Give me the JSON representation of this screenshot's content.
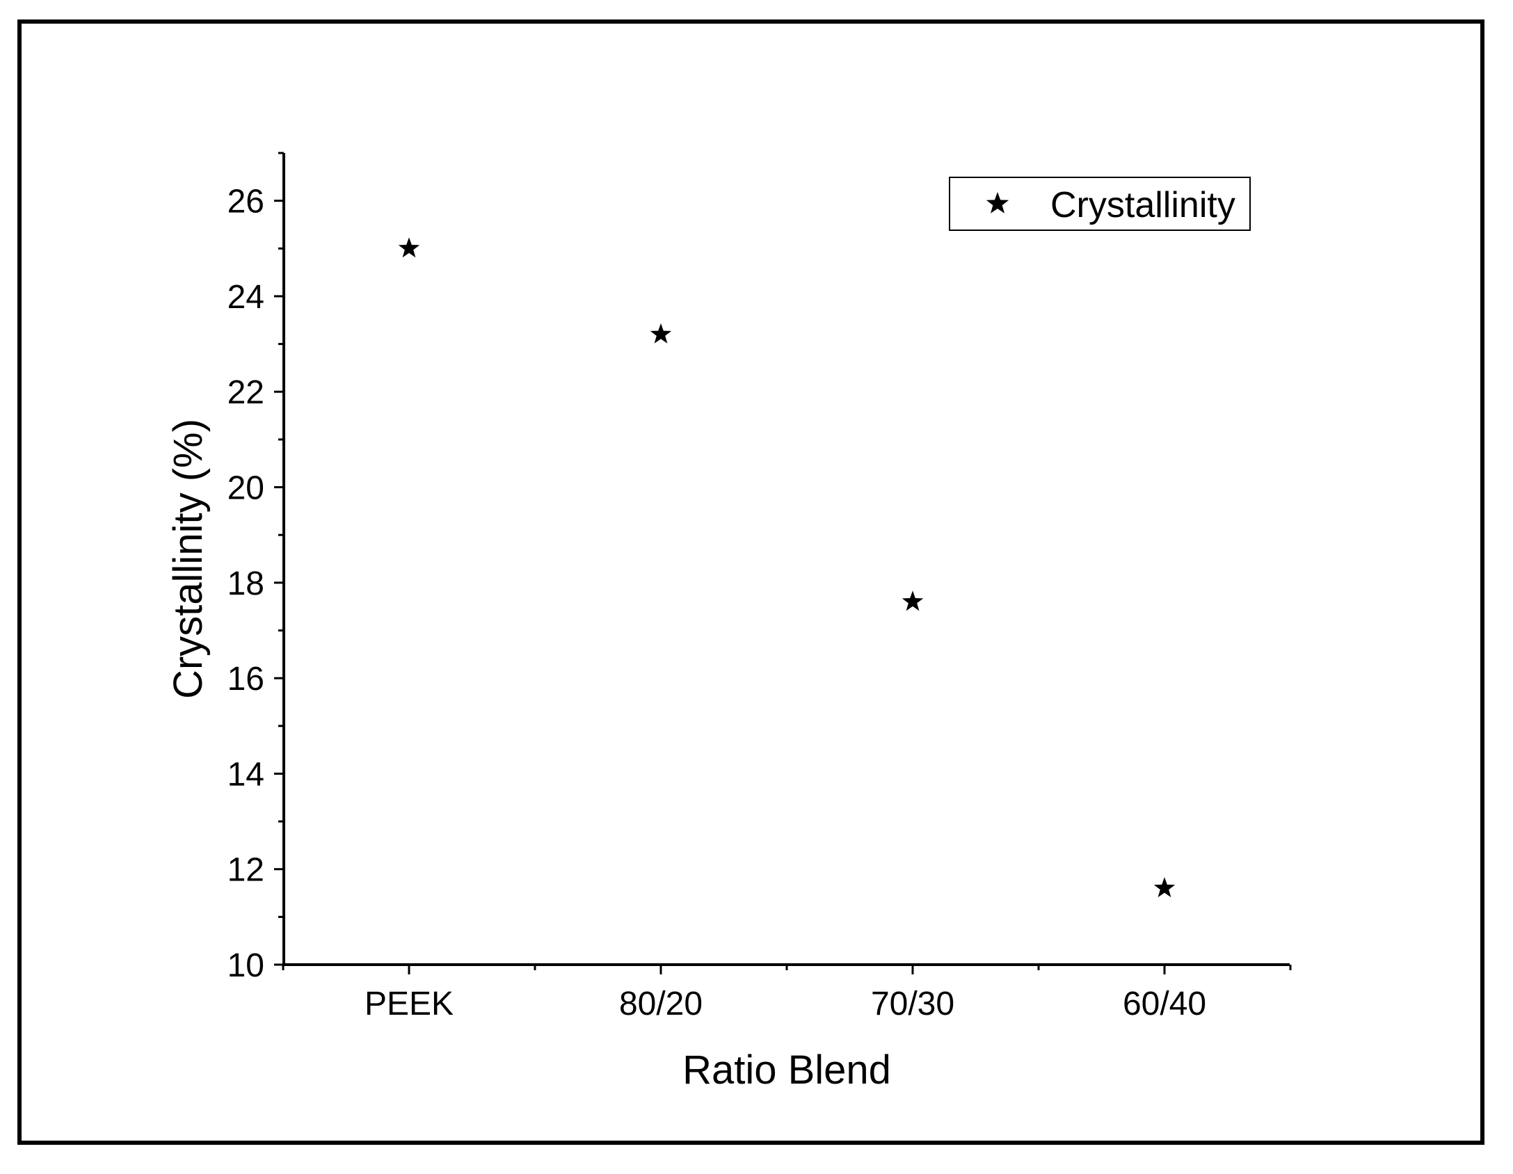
{
  "chart_data": {
    "type": "scatter",
    "categories": [
      "PEEK",
      "80/20",
      "70/30",
      "60/40"
    ],
    "series": [
      {
        "name": "Crystallinity",
        "values": [
          25.0,
          23.2,
          17.6,
          11.6
        ],
        "marker": "star",
        "color": "#000000"
      }
    ],
    "xlabel": "Ratio Blend",
    "ylabel": "Crystallinity (%)",
    "ylim": [
      10,
      27
    ],
    "yticks": [
      10,
      12,
      14,
      16,
      18,
      20,
      22,
      24,
      26
    ],
    "grid": false,
    "legend_position": "top-right"
  }
}
